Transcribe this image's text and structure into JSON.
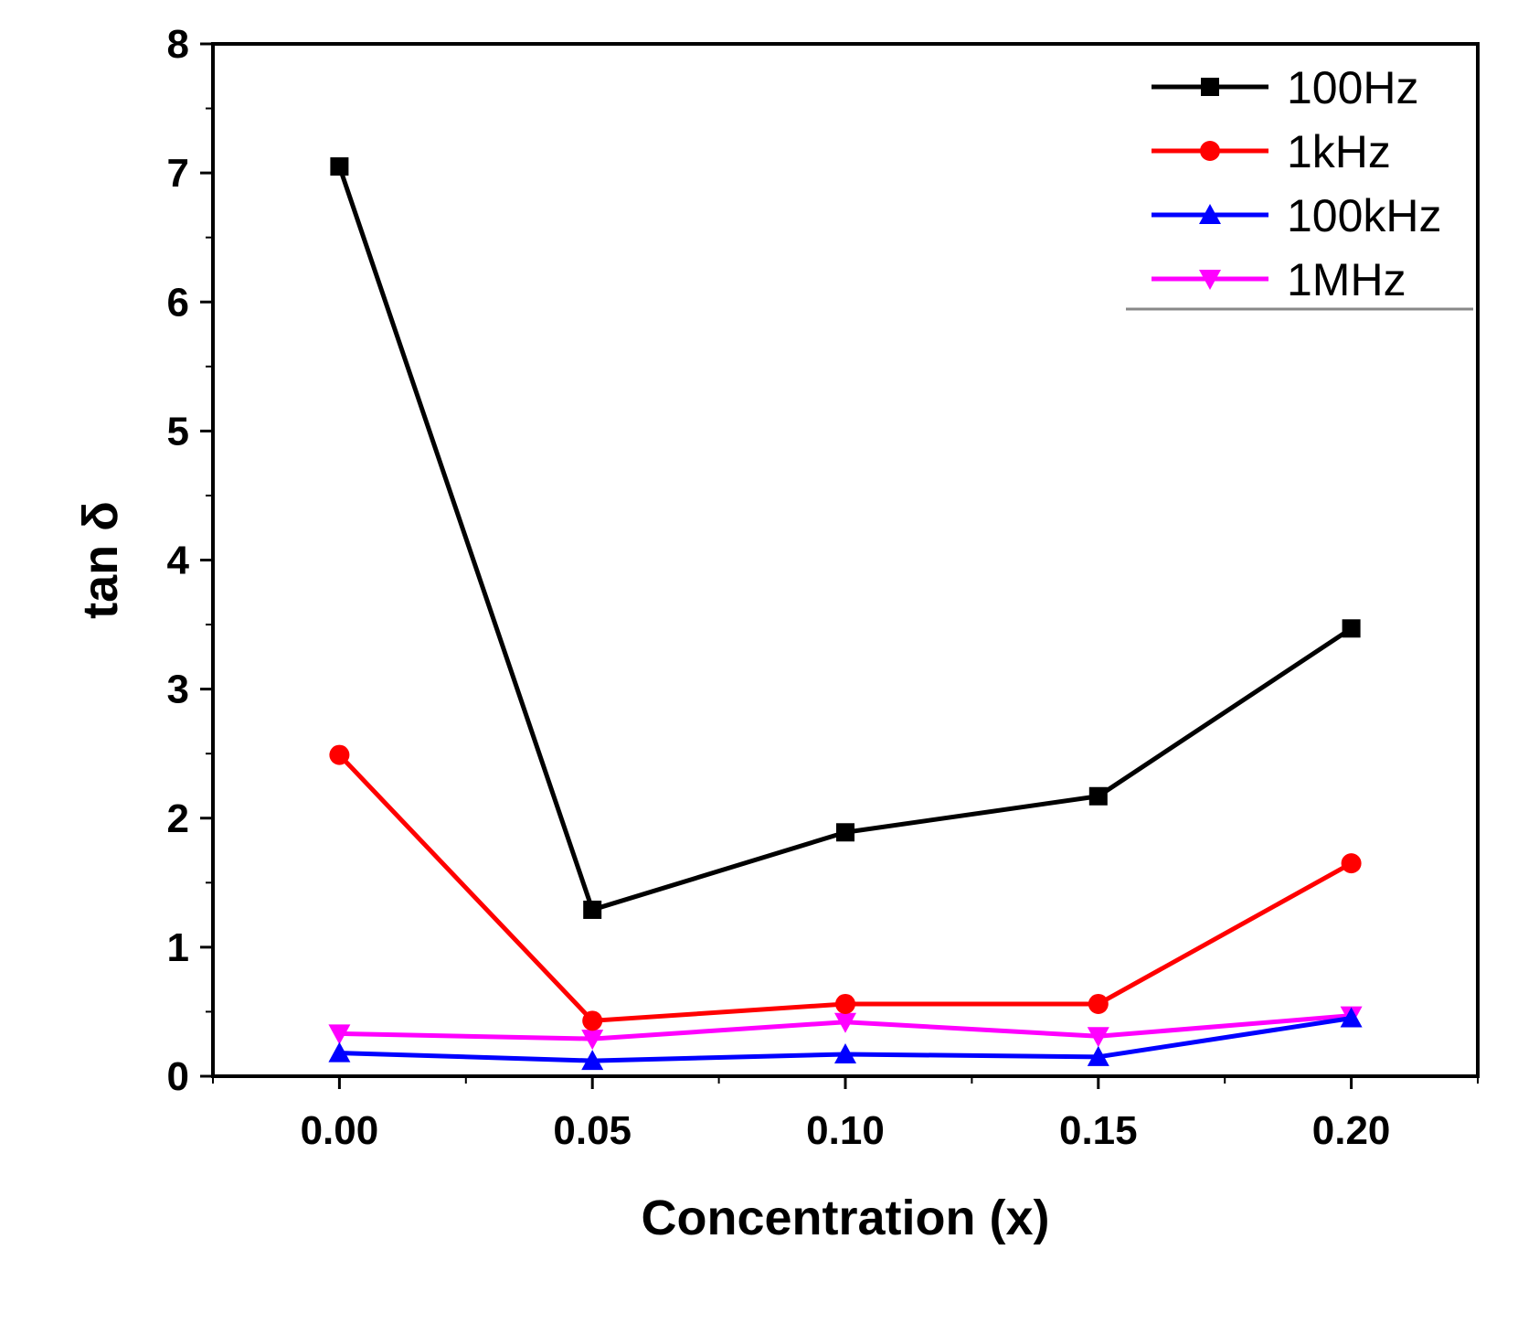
{
  "chart_data": {
    "type": "line",
    "title": "",
    "xlabel": "Concentration (x)",
    "ylabel": "tan δ",
    "x": [
      0.0,
      0.05,
      0.1,
      0.15,
      0.2
    ],
    "x_tick_labels": [
      "0.00",
      "0.05",
      "0.10",
      "0.15",
      "0.20"
    ],
    "xlim": [
      -0.025,
      0.225
    ],
    "ylim": [
      0,
      8
    ],
    "y_ticks": [
      0,
      1,
      2,
      3,
      4,
      5,
      6,
      7,
      8
    ],
    "y_tick_labels": [
      "0",
      "1",
      "2",
      "3",
      "4",
      "5",
      "6",
      "7",
      "8"
    ],
    "grid": false,
    "legend_position": "top-right",
    "series": [
      {
        "name": "100Hz",
        "color": "#000000",
        "marker": "square",
        "values": [
          7.05,
          1.29,
          1.89,
          2.17,
          3.47
        ]
      },
      {
        "name": "1kHz",
        "color": "#ff0000",
        "marker": "circle",
        "values": [
          2.49,
          0.43,
          0.56,
          0.56,
          1.65
        ]
      },
      {
        "name": "100kHz",
        "color": "#0000ff",
        "marker": "triangle-up",
        "values": [
          0.18,
          0.12,
          0.17,
          0.15,
          0.45
        ]
      },
      {
        "name": "1MHz",
        "color": "#ff00ff",
        "marker": "triangle-down",
        "values": [
          0.33,
          0.29,
          0.42,
          0.31,
          0.47
        ]
      }
    ]
  }
}
